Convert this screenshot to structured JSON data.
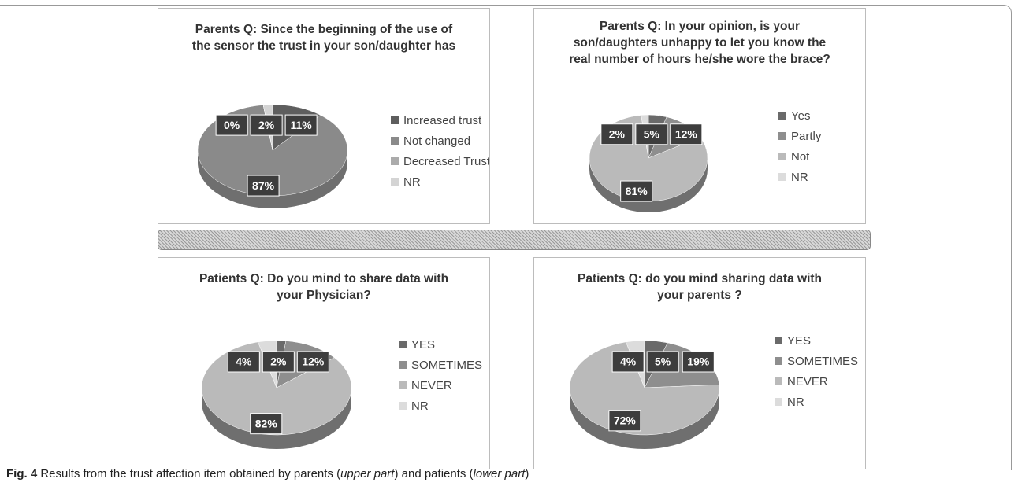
{
  "chart_data": [
    {
      "type": "pie",
      "title": "Parents Q: Since the beginning of the use of the sensor the trust in your son/daughter has",
      "categories": [
        "Increased trust",
        "Not changed",
        "Decreased Trust",
        "NR"
      ],
      "values": [
        11,
        87,
        0,
        2
      ],
      "value_labels": [
        "11%",
        "87%",
        "0%",
        "2%"
      ],
      "colors": [
        "#5e5e5e",
        "#8a8a8a",
        "#ababab",
        "#d4d4d4"
      ]
    },
    {
      "type": "pie",
      "title": "Parents Q: In your opinion, is your son/daughters unhappy to let you know the real number of hours he/she wore the brace?",
      "categories": [
        "Yes",
        "Partly",
        "Not",
        "NR"
      ],
      "values": [
        5,
        12,
        81,
        2
      ],
      "value_labels": [
        "5%",
        "12%",
        "81%",
        "2%"
      ],
      "colors": [
        "#6a6a6a",
        "#8e8e8e",
        "#bababa",
        "#dcdcdc"
      ]
    },
    {
      "type": "pie",
      "title": "Patients Q: Do you mind to share data with your Physician?",
      "categories": [
        "YES",
        "SOMETIMES",
        "NEVER",
        "NR"
      ],
      "values": [
        2,
        12,
        82,
        4
      ],
      "value_labels": [
        "2%",
        "12%",
        "82%",
        "4%"
      ],
      "colors": [
        "#6a6a6a",
        "#8e8e8e",
        "#bababa",
        "#dcdcdc"
      ]
    },
    {
      "type": "pie",
      "title": "Patients Q: do you mind sharing data with your parents ?",
      "categories": [
        "YES",
        "SOMETIMES",
        "NEVER",
        "NR"
      ],
      "values": [
        5,
        19,
        72,
        4
      ],
      "value_labels": [
        "5%",
        "19%",
        "72%",
        "4%"
      ],
      "colors": [
        "#6a6a6a",
        "#8e8e8e",
        "#bababa",
        "#dcdcdc"
      ]
    }
  ],
  "caption": {
    "label": "Fig. 4",
    "parts": [
      "Results from the trust affection item obtained by parents (",
      "upper part",
      ") and patients (",
      "lower part",
      ")"
    ]
  }
}
